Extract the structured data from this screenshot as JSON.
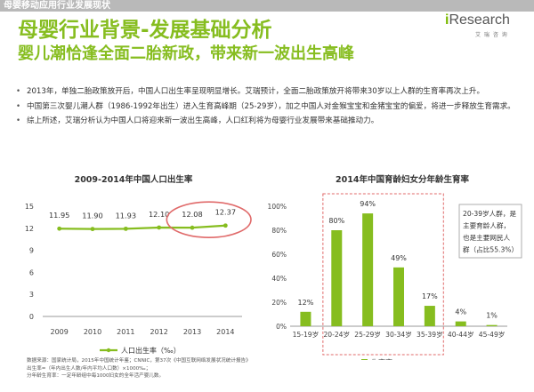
{
  "header": {
    "bar_text": "母婴移动应用行业发展现状",
    "title": "母婴行业背景-发展基础分析",
    "subtitle": "婴儿潮恰逢全面二胎新政，带来新一波出生高峰",
    "logo_brand_i": "i",
    "logo_brand_rest": "Research",
    "logo_cn": "艾 瑞 咨 询"
  },
  "bullets": [
    "2013年，单独二胎政策放开后，中国人口出生率呈现明显增长。艾瑞预计，全面二胎政策放开将带来30岁以上人群的生育率再次上升。",
    "中国第三次婴儿潮人群（1986-1992年出生）进入生育高峰期（25-29岁），加之中国人对金猴宝宝和金猪宝宝的偏爱，将进一步释放生育需求。",
    "综上所述，艾瑞分析认为中国人口将迎来新一波出生高峰，人口红利将为母婴行业发展带来基础推动力。"
  ],
  "bullet_symbol": "•",
  "chart_data": [
    {
      "type": "line",
      "title": "2009-2014年中国人口出生率",
      "x": [
        "2009",
        "2010",
        "2011",
        "2012",
        "2013",
        "2014"
      ],
      "series": [
        {
          "name": "人口出生率（‰）",
          "values": [
            11.95,
            11.9,
            11.93,
            12.1,
            12.08,
            12.37
          ]
        }
      ],
      "ylim": [
        0,
        15
      ],
      "yticks": [
        0,
        3,
        6,
        9,
        12,
        15
      ],
      "value_labels": [
        "11.95",
        "11.90",
        "11.93",
        "12.10",
        "12.08",
        "12.37"
      ],
      "color": "#86bd1f",
      "highlight_color": "#e06a6a",
      "grid": false,
      "legend": "bottom"
    },
    {
      "type": "bar",
      "title": "2014年中国育龄妇女分年龄生育率",
      "categories": [
        "15-19岁",
        "20-24岁",
        "25-29岁",
        "30-34岁",
        "35-39岁",
        "40-44岁",
        "45-49岁"
      ],
      "series": [
        {
          "name": "生育率",
          "values": [
            12,
            80,
            94,
            49,
            17,
            4,
            1
          ]
        }
      ],
      "value_labels": [
        "12%",
        "80%",
        "94%",
        "49%",
        "17%",
        "4%",
        "1%"
      ],
      "ylim": [
        0,
        100
      ],
      "yticks": [
        "0%",
        "20%",
        "40%",
        "60%",
        "80%",
        "100%"
      ],
      "color": "#86bd1f",
      "highlight_color": "#e06a6a",
      "annotation": [
        "20-39岁人群，是",
        "主要育龄人群，",
        "也是主要网民人",
        "群（占比55.3%）"
      ],
      "grid": false,
      "legend": "bottom"
    }
  ],
  "source": [
    "数据来源：国家统计局，2015年中国统计年鉴；CNNIC，第37次《中国互联网络发展状况统计报告》",
    "出生率=（年内出生人数/年内平均人口数）×1000‰；",
    "分年龄生育率：一定年龄组中每1000妇女的全年活产婴儿数。"
  ]
}
